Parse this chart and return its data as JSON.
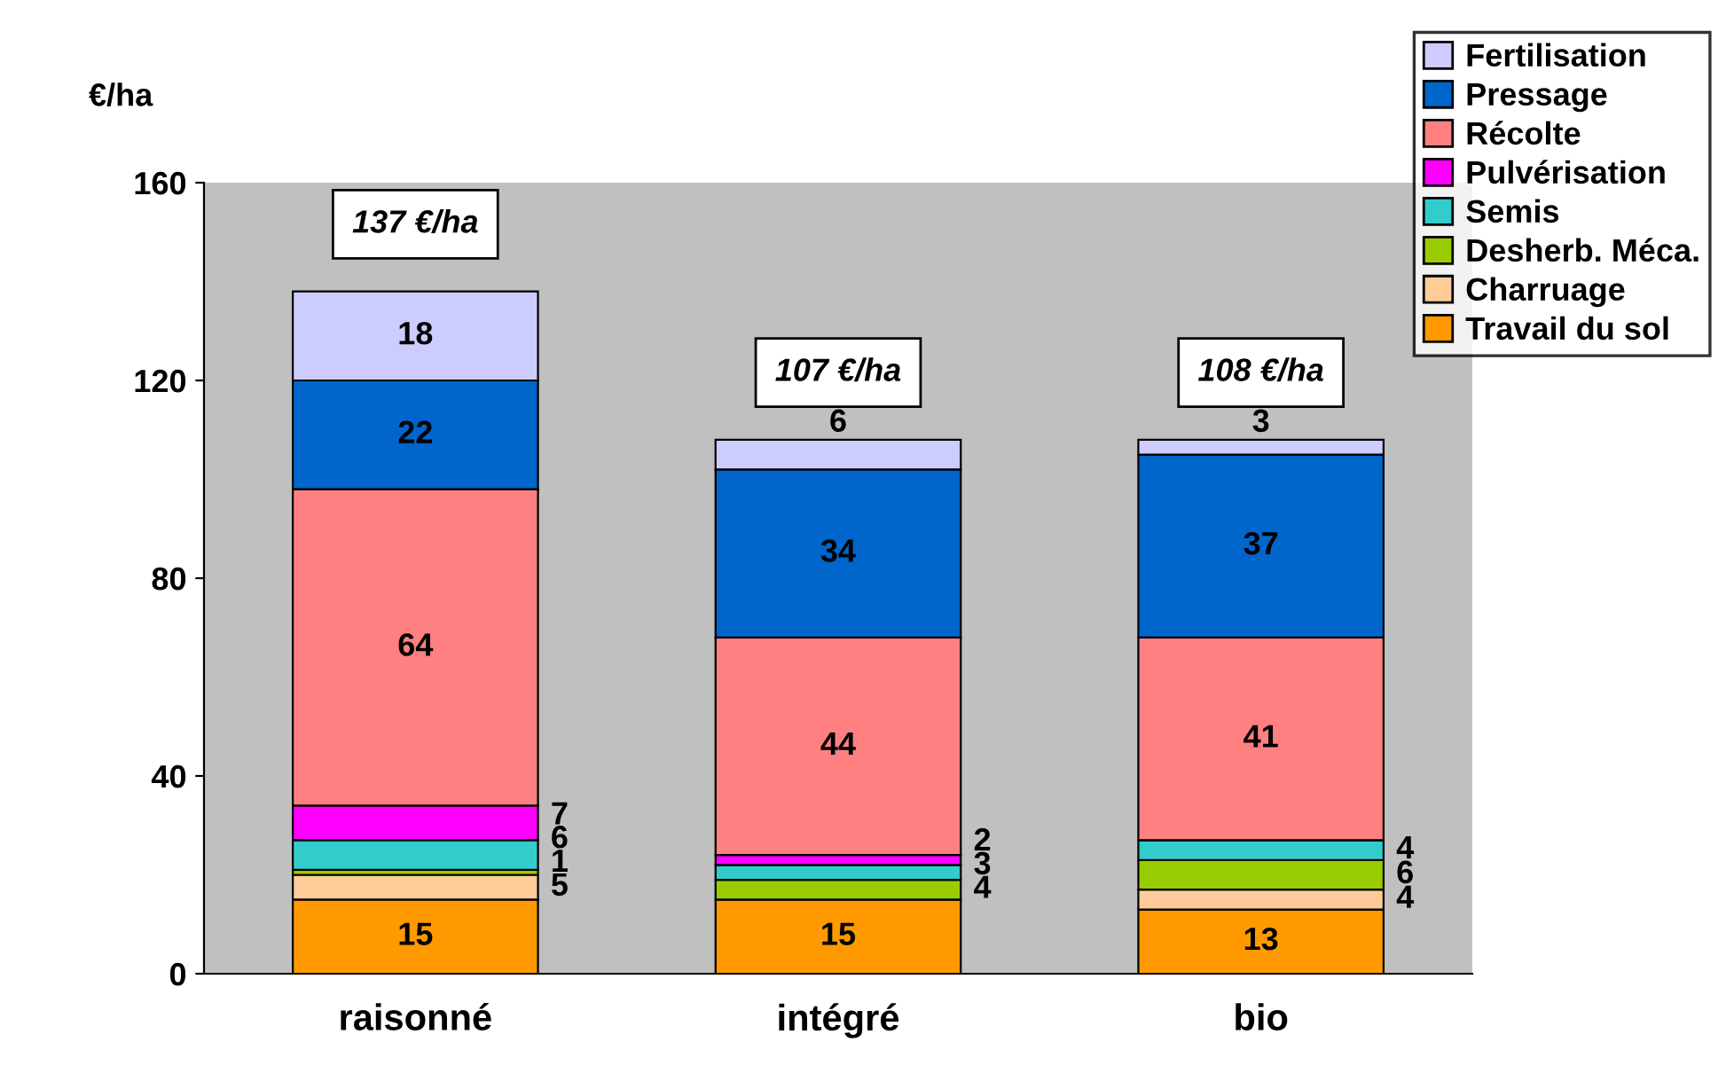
{
  "chart_data": {
    "type": "bar",
    "stacked": true,
    "ylabel": "€/ha",
    "categories": [
      "raisonné",
      "intégré",
      "bio"
    ],
    "series": [
      {
        "name": "Travail du sol",
        "color": "#ff9900",
        "values": [
          15,
          15,
          13
        ],
        "value_labels": [
          "15",
          "15",
          "13"
        ]
      },
      {
        "name": "Charruage",
        "color": "#ffcc99",
        "values": [
          5,
          0,
          4
        ],
        "value_labels": [
          "5",
          null,
          "4"
        ]
      },
      {
        "name": "Desherb. Méca.",
        "color": "#99cc00",
        "values": [
          1,
          4,
          6
        ],
        "value_labels": [
          "1",
          "4",
          "6"
        ]
      },
      {
        "name": "Semis",
        "color": "#33cccc",
        "values": [
          6,
          3,
          4
        ],
        "value_labels": [
          "6",
          "3",
          "4"
        ]
      },
      {
        "name": "Pulvérisation",
        "color": "#ff00ff",
        "values": [
          7,
          2,
          0
        ],
        "value_labels": [
          "7",
          "2",
          null
        ]
      },
      {
        "name": "Récolte",
        "color": "#ff8080",
        "values": [
          64,
          44,
          41
        ],
        "value_labels": [
          "64",
          "44",
          "41"
        ]
      },
      {
        "name": "Pressage",
        "color": "#0066cc",
        "values": [
          22,
          34,
          37
        ],
        "value_labels": [
          "22",
          "34",
          "37"
        ]
      },
      {
        "name": "Fertilisation",
        "color": "#ccccff",
        "values": [
          18,
          6,
          3
        ],
        "value_labels": [
          "18",
          "6",
          "3"
        ]
      }
    ],
    "totals": [
      "137 €/ha",
      "107 €/ha",
      "108 €/ha"
    ],
    "ylim": [
      0,
      160
    ],
    "yticks": [
      0,
      40,
      80,
      120,
      160
    ],
    "grid": false,
    "legend": "top right"
  }
}
